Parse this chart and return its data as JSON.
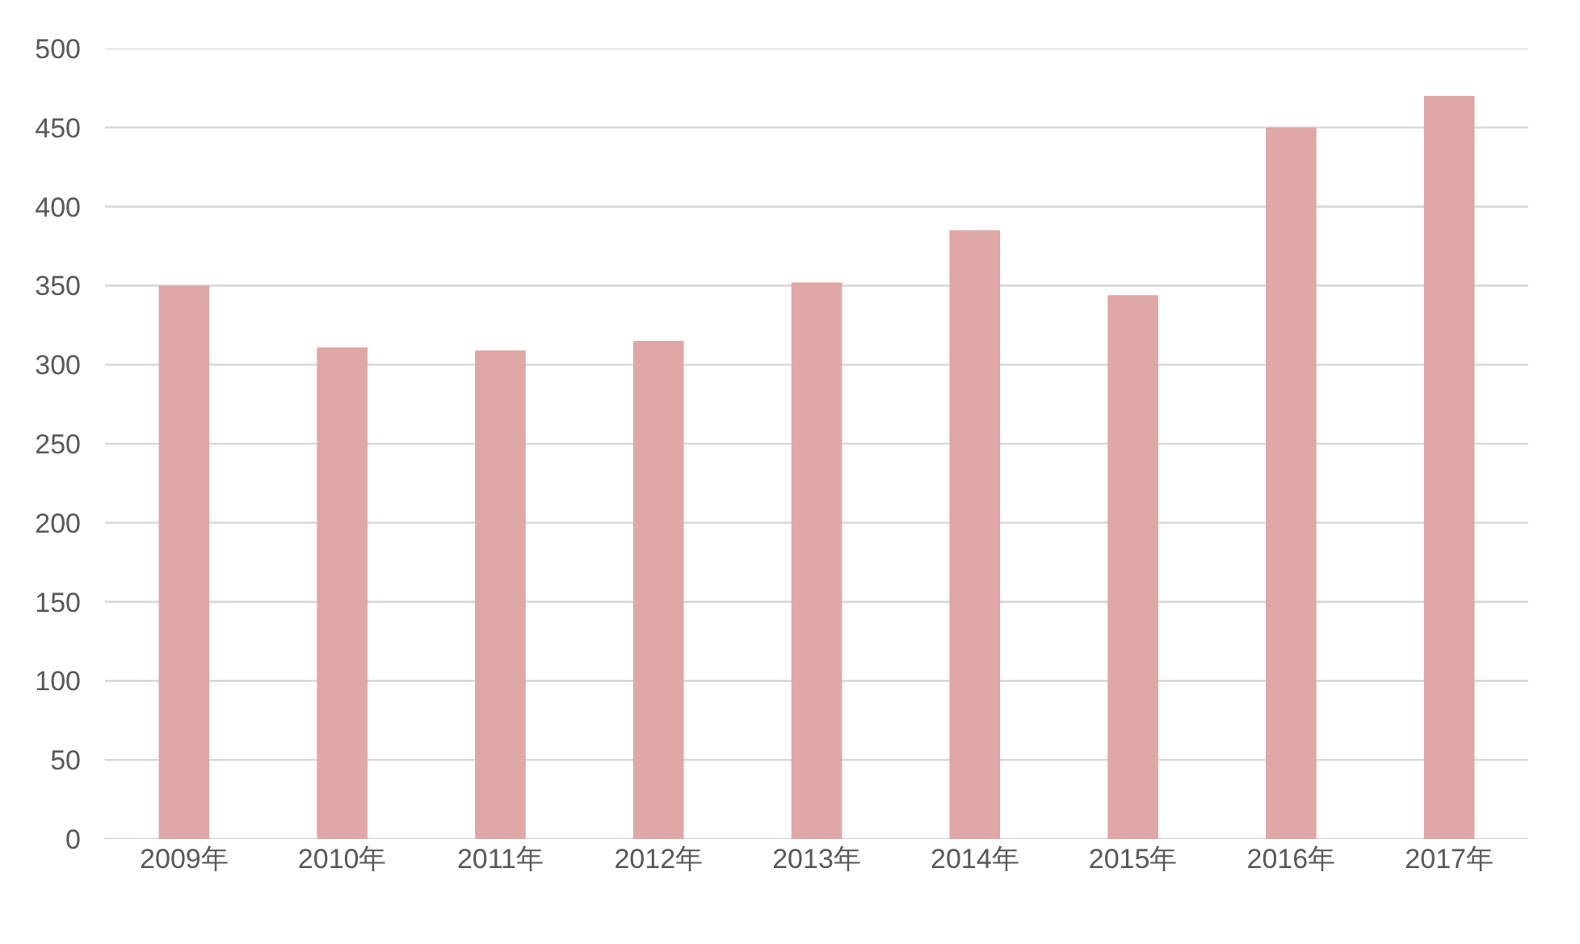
{
  "chart_data": {
    "type": "bar",
    "categories": [
      "2009年",
      "2010年",
      "2011年",
      "2012年",
      "2013年",
      "2014年",
      "2015年",
      "2016年",
      "2017年"
    ],
    "values": [
      350,
      311,
      309,
      315,
      352,
      385,
      344,
      450,
      470
    ],
    "color": "#dfa7a6",
    "ylim": [
      0,
      500
    ],
    "yticks": [
      0,
      50,
      100,
      150,
      200,
      250,
      300,
      350,
      400,
      450,
      500
    ],
    "grid": "y"
  }
}
